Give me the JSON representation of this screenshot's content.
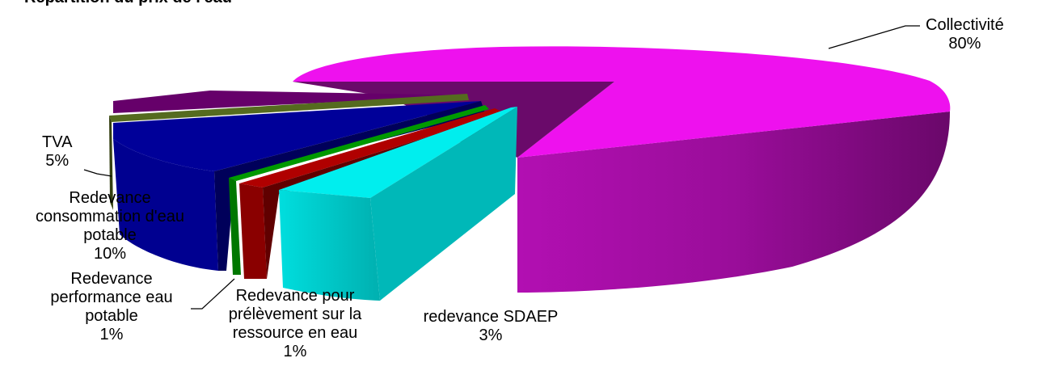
{
  "chart_data": {
    "type": "pie",
    "title": "",
    "view": "3d-exploded",
    "legend": "none",
    "top_fragment": "Répartition du prix de l'eau",
    "slices": [
      {
        "label": [
          "Collectivité"
        ],
        "pct": "80%",
        "value": 80,
        "color": "#ee11ee",
        "side": "#7a0a7a"
      },
      {
        "label": [
          "redevance SDAEP"
        ],
        "pct": "3%",
        "value": 3,
        "color": "#00eeee",
        "side": "#00a8a8"
      },
      {
        "label": [
          "Redevance pour",
          "prélèvement sur la",
          "ressource en eau"
        ],
        "pct": "1%",
        "value": 1,
        "color": "#b00000",
        "side": "#6a0000"
      },
      {
        "label": [
          "Redevance",
          "performance eau",
          "potable"
        ],
        "pct": "1%",
        "value": 1,
        "color": "#009900",
        "side": "#005500"
      },
      {
        "label": [
          "Redevance",
          "consommation d'eau",
          "potable"
        ],
        "pct": "10%",
        "value": 10,
        "color": "#000099",
        "side": "#00005a"
      },
      {
        "label": [
          "TVA"
        ],
        "pct": "5%",
        "value": 5,
        "color": "#556b1f",
        "side": "#333f10"
      }
    ]
  }
}
